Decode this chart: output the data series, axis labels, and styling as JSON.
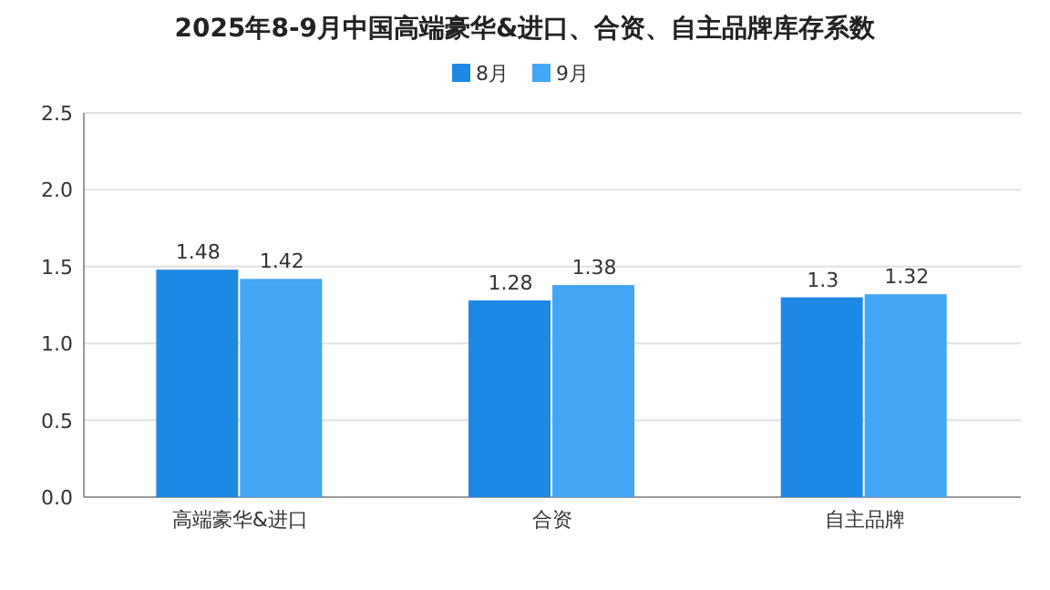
{
  "chart_data": {
    "type": "bar",
    "title": "2025年8-9月中国高端豪华&进口、合资、自主品牌库存系数",
    "categories": [
      "高端豪华&进口",
      "合资",
      "自主品牌"
    ],
    "series": [
      {
        "name": "8月",
        "color": "#1e88e5",
        "values": [
          1.48,
          1.28,
          1.3
        ]
      },
      {
        "name": "9月",
        "color": "#42a5f5",
        "values": [
          1.42,
          1.38,
          1.32
        ]
      }
    ],
    "ylim": [
      0,
      2.5
    ],
    "yticks": [
      {
        "value": 0,
        "label": "0.0"
      },
      0.5,
      {
        "value": 1,
        "label": "1.0"
      },
      1.5,
      {
        "value": 2,
        "label": "2.0"
      },
      2.5
    ],
    "grid": "y",
    "legend": "top",
    "data_labels": true
  }
}
